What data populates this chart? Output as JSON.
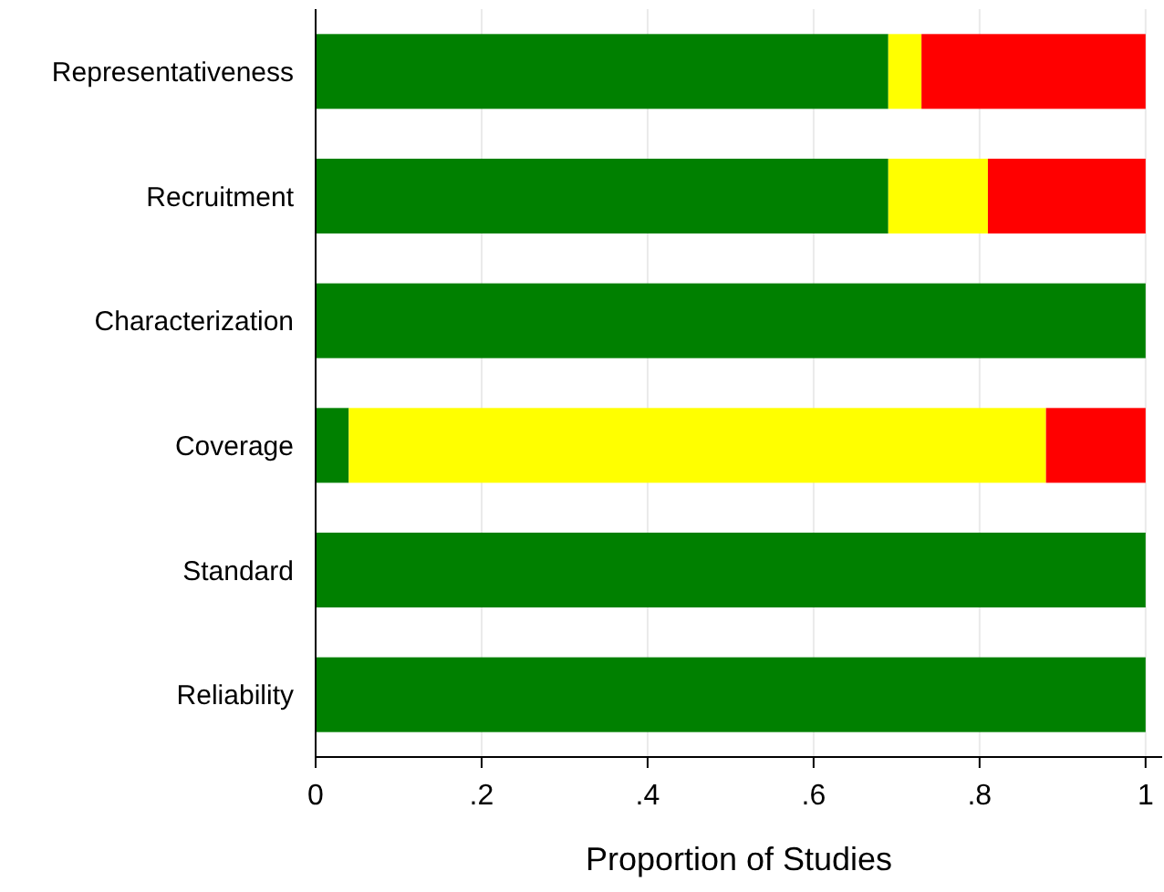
{
  "chart_data": {
    "type": "bar",
    "orientation": "horizontal",
    "stacked": true,
    "xlabel": "Proportion of Studies",
    "categories": [
      "Representativeness",
      "Recruitment",
      "Characterization",
      "Coverage",
      "Standard",
      "Reliability"
    ],
    "series": [
      {
        "color": "#008000",
        "values": [
          0.69,
          0.69,
          1,
          0.04,
          1,
          1
        ]
      },
      {
        "color": "#ffff00",
        "values": [
          0.04,
          0.12,
          0,
          0.84,
          0,
          0
        ]
      },
      {
        "color": "#ff0000",
        "values": [
          0.27,
          0.19,
          0,
          0.12,
          0,
          0
        ]
      }
    ],
    "xlim": [
      0,
      1.02
    ],
    "xticks": [
      0,
      {
        "value": 0.2,
        "label": ".2"
      },
      {
        "value": 0.4,
        "label": ".4"
      },
      {
        "value": 0.6,
        "label": ".6"
      },
      {
        "value": 0.8,
        "label": ".8"
      },
      1
    ],
    "grid": "x"
  }
}
